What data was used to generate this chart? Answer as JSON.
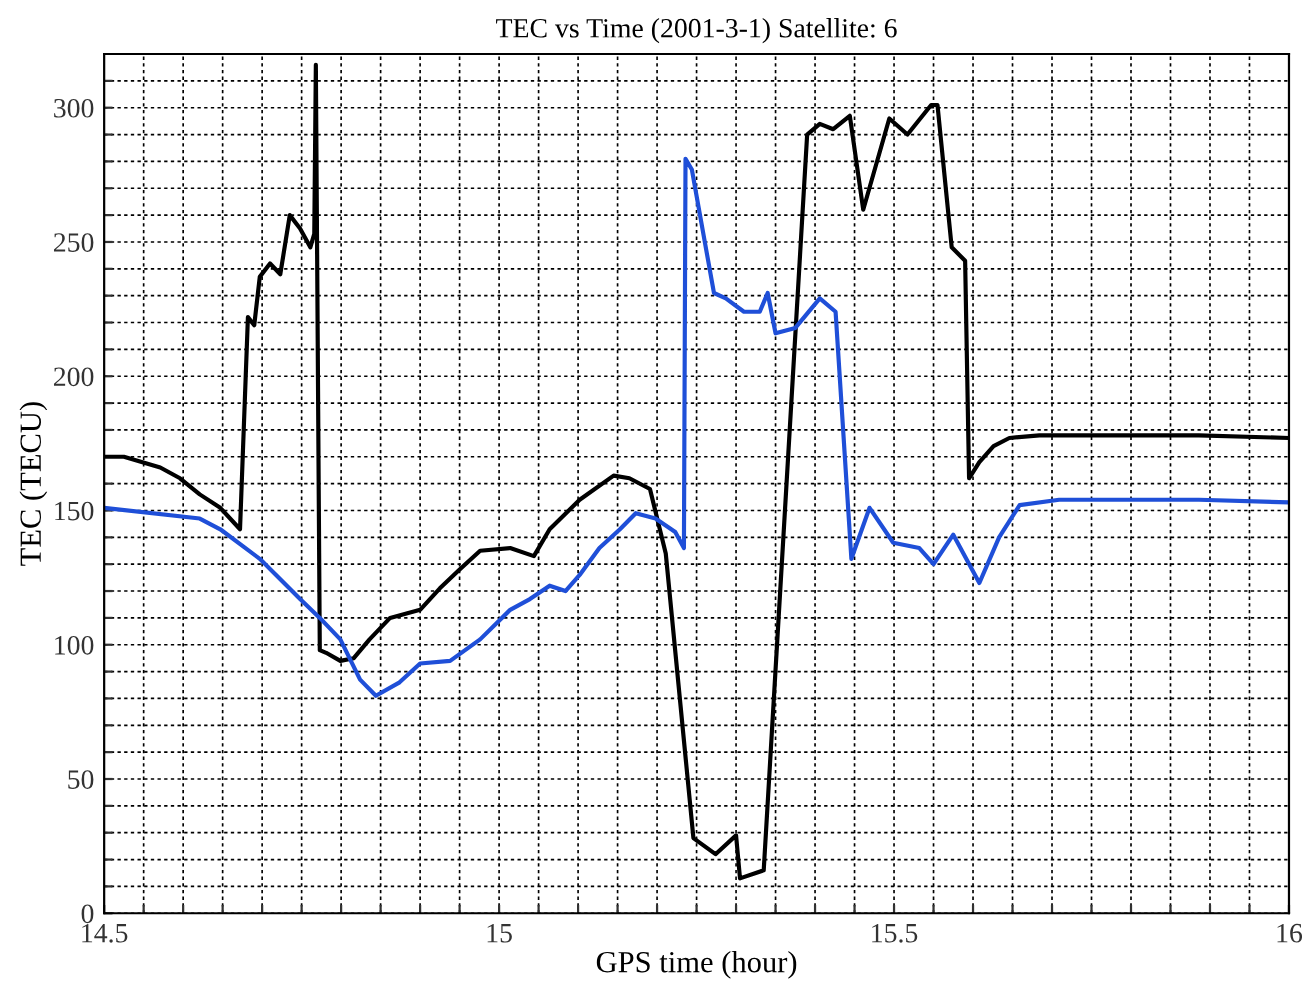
{
  "chart_data": {
    "type": "line",
    "title": "TEC vs Time (2001-3-1) Satellite: 6",
    "xlabel": "GPS time (hour)",
    "ylabel": "TEC (TECU)",
    "xlim": [
      14.5,
      16
    ],
    "ylim": [
      0,
      320
    ],
    "xticks": [
      14.5,
      {
        "value": 14.55,
        "label": null
      },
      {
        "value": 14.6,
        "label": null
      },
      {
        "value": 14.65,
        "label": null
      },
      {
        "value": 14.7,
        "label": null
      },
      {
        "value": 14.75,
        "label": null
      },
      {
        "value": 14.8,
        "label": null
      },
      {
        "value": 14.85,
        "label": null
      },
      {
        "value": 14.9,
        "label": null
      },
      {
        "value": 14.95,
        "label": null
      },
      15,
      {
        "value": 15.05,
        "label": null
      },
      {
        "value": 15.1,
        "label": null
      },
      {
        "value": 15.15,
        "label": null
      },
      {
        "value": 15.2,
        "label": null
      },
      {
        "value": 15.25,
        "label": null
      },
      {
        "value": 15.3,
        "label": null
      },
      {
        "value": 15.35,
        "label": null
      },
      {
        "value": 15.4,
        "label": null
      },
      {
        "value": 15.45,
        "label": null
      },
      15.5,
      {
        "value": 15.55,
        "label": null
      },
      {
        "value": 15.6,
        "label": null
      },
      {
        "value": 15.65,
        "label": null
      },
      {
        "value": 15.7,
        "label": null
      },
      {
        "value": 15.75,
        "label": null
      },
      {
        "value": 15.8,
        "label": null
      },
      {
        "value": 15.85,
        "label": null
      },
      {
        "value": 15.9,
        "label": null
      },
      {
        "value": 15.95,
        "label": null
      },
      16
    ],
    "yticks": [
      0,
      {
        "value": 10,
        "label": null
      },
      {
        "value": 20,
        "label": null
      },
      {
        "value": 30,
        "label": null
      },
      {
        "value": 40,
        "label": null
      },
      50,
      {
        "value": 60,
        "label": null
      },
      {
        "value": 70,
        "label": null
      },
      {
        "value": 80,
        "label": null
      },
      {
        "value": 90,
        "label": null
      },
      100,
      {
        "value": 110,
        "label": null
      },
      {
        "value": 120,
        "label": null
      },
      {
        "value": 130,
        "label": null
      },
      {
        "value": 140,
        "label": null
      },
      150,
      {
        "value": 160,
        "label": null
      },
      {
        "value": 170,
        "label": null
      },
      {
        "value": 180,
        "label": null
      },
      {
        "value": 190,
        "label": null
      },
      200,
      {
        "value": 210,
        "label": null
      },
      {
        "value": 220,
        "label": null
      },
      {
        "value": 230,
        "label": null
      },
      {
        "value": 240,
        "label": null
      },
      250,
      {
        "value": 260,
        "label": null
      },
      {
        "value": 270,
        "label": null
      },
      {
        "value": 280,
        "label": null
      },
      {
        "value": 290,
        "label": null
      },
      300,
      {
        "value": 310,
        "label": null
      }
    ],
    "grid": true,
    "line_style": "solid",
    "legend": false,
    "series": [
      {
        "color": "#000000",
        "x": [
          14.5,
          14.525,
          14.571,
          14.596,
          14.621,
          14.647,
          14.672,
          14.682,
          14.69,
          14.697,
          14.71,
          14.723,
          14.735,
          14.748,
          14.761,
          14.766,
          14.768,
          14.773,
          14.781,
          14.799,
          14.816,
          14.836,
          14.862,
          14.9,
          14.925,
          14.95,
          14.976,
          15.014,
          15.044,
          15.064,
          15.102,
          15.145,
          15.165,
          15.191,
          15.211,
          15.246,
          15.274,
          15.3,
          15.305,
          15.335,
          15.39,
          15.406,
          15.423,
          15.444,
          15.461,
          15.494,
          15.517,
          15.547,
          15.555,
          15.573,
          15.59,
          15.595,
          15.608,
          15.626,
          15.646,
          15.684,
          15.886,
          16
        ],
        "values": [
          170,
          170,
          166,
          162,
          156,
          151,
          143,
          222,
          219,
          237,
          242,
          238,
          260,
          255,
          248,
          253,
          316,
          98,
          97,
          94,
          95,
          102,
          110,
          113,
          121,
          128,
          135,
          136,
          133,
          143,
          154,
          163,
          162,
          158,
          134,
          28,
          22,
          29,
          13,
          16,
          290,
          294,
          292,
          297,
          262,
          296,
          290,
          301,
          301,
          248,
          243,
          162,
          168,
          174,
          177,
          178,
          178,
          177
        ]
      },
      {
        "color": "#1f4fd8",
        "x": [
          14.5,
          14.621,
          14.647,
          14.697,
          14.748,
          14.773,
          14.799,
          14.824,
          14.844,
          14.874,
          14.9,
          14.938,
          14.976,
          15.014,
          15.039,
          15.064,
          15.084,
          15.102,
          15.127,
          15.153,
          15.173,
          15.198,
          15.223,
          15.234,
          15.236,
          15.244,
          15.272,
          15.287,
          15.31,
          15.33,
          15.34,
          15.35,
          15.375,
          15.406,
          15.426,
          15.446,
          15.469,
          15.499,
          15.532,
          15.55,
          15.575,
          15.608,
          15.633,
          15.659,
          15.709,
          15.886,
          16
        ],
        "values": [
          151,
          147,
          143,
          132,
          117,
          110,
          102,
          87,
          81,
          86,
          93,
          94,
          102,
          113,
          117,
          122,
          120,
          126,
          136,
          143,
          149,
          147,
          142,
          136,
          281,
          277,
          231,
          229,
          224,
          224,
          231,
          216,
          218,
          229,
          224,
          132,
          151,
          138,
          136,
          130,
          141,
          123,
          140,
          152,
          154,
          154,
          153
        ]
      }
    ]
  }
}
